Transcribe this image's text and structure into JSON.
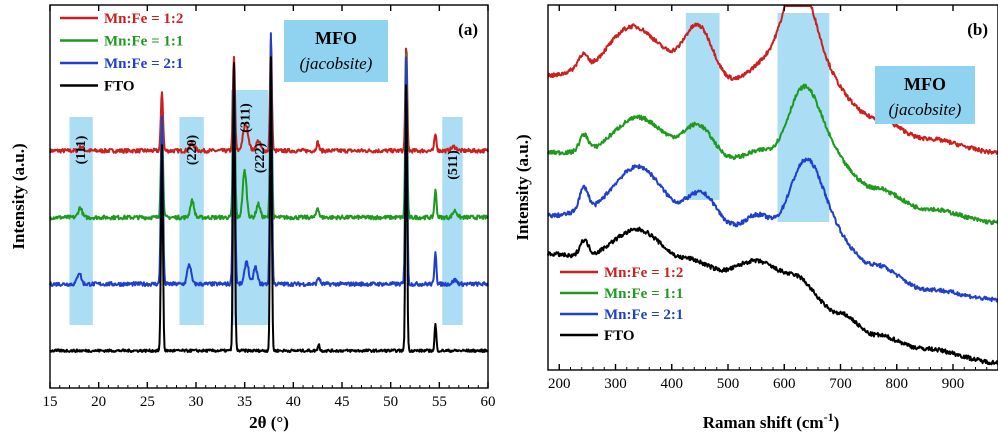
{
  "chart_data": [
    {
      "panel": "(a)",
      "type": "line",
      "xlabel": "2θ (°)",
      "ylabel": "Intensity (a.u.)",
      "xlim": [
        15,
        60
      ],
      "xticks": [
        "15",
        "20",
        "25",
        "30",
        "35",
        "40",
        "45",
        "50",
        "55",
        "60"
      ],
      "y_ticks_shown": false,
      "legend": {
        "placement": "top-left",
        "entries": [
          {
            "label": "Mn:Fe = 1:2",
            "color": "#cc1f1f"
          },
          {
            "label": "Mn:Fe = 1:1",
            "color": "#1f9a1f"
          },
          {
            "label": "Mn:Fe = 2:1",
            "color": "#1f3fcc"
          },
          {
            "label": "FTO",
            "color": "#000000"
          }
        ]
      },
      "annotation_box": {
        "line1": "MFO",
        "line2": "(jacobsite)",
        "color": "#8fd3f0"
      },
      "highlight_bands": [
        {
          "x_from": 17.0,
          "x_to": 19.4,
          "label": "(111)"
        },
        {
          "x_from": 28.3,
          "x_to": 30.8,
          "label": "(220)"
        },
        {
          "x_from": 33.6,
          "x_to": 37.4,
          "label": "(311)"
        },
        {
          "x_from": 33.6,
          "x_to": 37.4,
          "label": "(222)"
        },
        {
          "x_from": 55.3,
          "x_to": 57.4,
          "label": "(511)"
        }
      ],
      "series": [
        {
          "name": "Mn:Fe = 1:2",
          "color": "#cc1f1f",
          "baseline": 0.62,
          "noise": 0.006,
          "peaks": [
            [
              18.2,
              0.012,
              0.5
            ],
            [
              26.5,
              0.18,
              0.25
            ],
            [
              29.6,
              0.02,
              0.6
            ],
            [
              33.9,
              0.28,
              0.25
            ],
            [
              35.1,
              0.08,
              0.6
            ],
            [
              36.4,
              0.03,
              0.5
            ],
            [
              37.7,
              0.34,
              0.22
            ],
            [
              42.5,
              0.025,
              0.3
            ],
            [
              51.6,
              0.32,
              0.22
            ],
            [
              54.6,
              0.05,
              0.25
            ],
            [
              56.5,
              0.012,
              0.6
            ]
          ]
        },
        {
          "name": "Mn:Fe = 1:1",
          "color": "#1f9a1f",
          "baseline": 0.42,
          "noise": 0.006,
          "peaks": [
            [
              18.1,
              0.03,
              0.45
            ],
            [
              26.5,
              0.3,
              0.25
            ],
            [
              29.6,
              0.05,
              0.45
            ],
            [
              33.9,
              0.42,
              0.25
            ],
            [
              35.0,
              0.14,
              0.45
            ],
            [
              36.4,
              0.04,
              0.45
            ],
            [
              37.7,
              0.52,
              0.22
            ],
            [
              42.5,
              0.03,
              0.3
            ],
            [
              51.6,
              0.5,
              0.22
            ],
            [
              54.6,
              0.08,
              0.25
            ],
            [
              56.6,
              0.02,
              0.5
            ]
          ]
        },
        {
          "name": "Mn:Fe = 2:1",
          "color": "#1f3fcc",
          "baseline": 0.22,
          "noise": 0.006,
          "peaks": [
            [
              18.0,
              0.035,
              0.45
            ],
            [
              26.5,
              0.5,
              0.25
            ],
            [
              29.3,
              0.06,
              0.45
            ],
            [
              33.9,
              0.65,
              0.25
            ],
            [
              35.2,
              0.07,
              0.45
            ],
            [
              36.1,
              0.05,
              0.45
            ],
            [
              37.7,
              0.76,
              0.22
            ],
            [
              42.6,
              0.02,
              0.3
            ],
            [
              51.6,
              0.7,
              0.22
            ],
            [
              54.6,
              0.1,
              0.22
            ],
            [
              56.6,
              0.012,
              0.5
            ]
          ]
        },
        {
          "name": "FTO",
          "color": "#000000",
          "baseline": 0.02,
          "noise": 0.004,
          "peaks": [
            [
              26.5,
              0.62,
              0.22
            ],
            [
              33.9,
              0.86,
              0.22
            ],
            [
              37.7,
              0.88,
              0.2
            ],
            [
              42.6,
              0.02,
              0.2
            ],
            [
              51.6,
              0.82,
              0.2
            ],
            [
              54.6,
              0.08,
              0.2
            ]
          ]
        }
      ]
    },
    {
      "panel": "(b)",
      "type": "line",
      "xlabel": "Raman shift (cm",
      "xlabel_sup": "-1",
      "xlabel_end": ")",
      "ylabel": "Intensity (a.u.)",
      "xlim": [
        180,
        980
      ],
      "xticks": [
        "200",
        "300",
        "400",
        "500",
        "600",
        "700",
        "800",
        "900"
      ],
      "y_ticks_shown": false,
      "legend": {
        "placement": "bottom-left",
        "entries": [
          {
            "label": "Mn:Fe = 1:2",
            "color": "#cc1f1f"
          },
          {
            "label": "Mn:Fe = 1:1",
            "color": "#1f9a1f"
          },
          {
            "label": "Mn:Fe = 2:1",
            "color": "#1f3fcc"
          },
          {
            "label": "FTO",
            "color": "#000000"
          }
        ]
      },
      "annotation_box": {
        "line1": "MFO",
        "line2": "(jacobsite)",
        "color": "#8fd3f0"
      },
      "highlight_bands": [
        {
          "x_from": 425,
          "x_to": 485
        },
        {
          "x_from": 588,
          "x_to": 680
        }
      ],
      "series": [
        {
          "name": "Mn:Fe = 1:2",
          "color": "#cc1f1f",
          "offset": 0.58,
          "noise": 0.006,
          "bg": [
            [
              190,
              0.24
            ],
            [
              240,
              0.26
            ],
            [
              330,
              0.36
            ],
            [
              420,
              0.28
            ],
            [
              500,
              0.22
            ],
            [
              560,
              0.22
            ],
            [
              600,
              0.2
            ],
            [
              680,
              0.2
            ],
            [
              760,
              0.12
            ],
            [
              850,
              0.06
            ],
            [
              980,
              0.02
            ]
          ],
          "peaks": [
            [
              242,
              0.04,
              8
            ],
            [
              333,
              0.02,
              40
            ],
            [
              450,
              0.12,
              25
            ],
            [
              550,
              0.03,
              20
            ],
            [
              625,
              0.31,
              32
            ]
          ]
        },
        {
          "name": "Mn:Fe = 1:1",
          "color": "#1f9a1f",
          "offset": 0.38,
          "noise": 0.006,
          "bg": [
            [
              190,
              0.22
            ],
            [
              240,
              0.22
            ],
            [
              340,
              0.3
            ],
            [
              420,
              0.24
            ],
            [
              500,
              0.2
            ],
            [
              560,
              0.2
            ],
            [
              600,
              0.18
            ],
            [
              680,
              0.2
            ],
            [
              760,
              0.12
            ],
            [
              850,
              0.06
            ],
            [
              980,
              0.02
            ]
          ],
          "peaks": [
            [
              244,
              0.05,
              8
            ],
            [
              345,
              0.02,
              40
            ],
            [
              450,
              0.07,
              25
            ],
            [
              550,
              0.02,
              20
            ],
            [
              635,
              0.22,
              30
            ]
          ]
        },
        {
          "name": "Mn:Fe = 2:1",
          "color": "#1f3fcc",
          "offset": 0.16,
          "noise": 0.006,
          "bg": [
            [
              190,
              0.26
            ],
            [
              240,
              0.27
            ],
            [
              340,
              0.38
            ],
            [
              420,
              0.28
            ],
            [
              500,
              0.22
            ],
            [
              560,
              0.22
            ],
            [
              600,
              0.2
            ],
            [
              680,
              0.2
            ],
            [
              760,
              0.12
            ],
            [
              850,
              0.05
            ],
            [
              980,
              0.02
            ]
          ],
          "peaks": [
            [
              244,
              0.07,
              8
            ],
            [
              345,
              0.02,
              40
            ],
            [
              460,
              0.07,
              25
            ],
            [
              550,
              0.04,
              20
            ],
            [
              640,
              0.22,
              30
            ]
          ]
        },
        {
          "name": "FTO",
          "color": "#000000",
          "offset": 0.0,
          "noise": 0.006,
          "bg": [
            [
              190,
              0.31
            ],
            [
              240,
              0.3
            ],
            [
              340,
              0.38
            ],
            [
              420,
              0.3
            ],
            [
              500,
              0.26
            ],
            [
              560,
              0.26
            ],
            [
              620,
              0.22
            ],
            [
              700,
              0.14
            ],
            [
              760,
              0.08
            ],
            [
              850,
              0.04
            ],
            [
              980,
              0.0
            ]
          ],
          "peaks": [
            [
              244,
              0.05,
              8
            ],
            [
              545,
              0.03,
              25
            ],
            [
              615,
              0.03,
              25
            ]
          ]
        }
      ]
    }
  ]
}
